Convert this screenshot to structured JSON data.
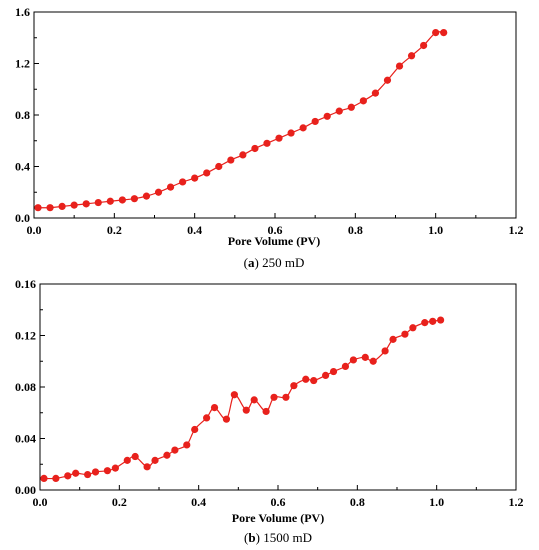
{
  "chart_data": [
    {
      "type": "line",
      "caption_letter": "a",
      "caption_text": "250 mD",
      "xlabel": "Pore Volume (PV)",
      "ylabel": "",
      "xlim": [
        0,
        1.2
      ],
      "ylim": [
        0,
        1.6
      ],
      "xticks": [
        "0.0",
        "0.2",
        "0.4",
        "0.6",
        "0.8",
        "1.0",
        "1.2"
      ],
      "yticks": [
        "0.0",
        "0.4",
        "0.8",
        "1.2",
        "1.6"
      ],
      "ytick_values": [
        0,
        0.4,
        0.8,
        1.2,
        1.6
      ],
      "grid": false,
      "line_color": "#e8211c",
      "series": [
        {
          "x": [
            0.01,
            0.04,
            0.07,
            0.1,
            0.13,
            0.16,
            0.19,
            0.22,
            0.25,
            0.28,
            0.31,
            0.34,
            0.37,
            0.4,
            0.43,
            0.46,
            0.49,
            0.52,
            0.55,
            0.58,
            0.61,
            0.64,
            0.67,
            0.7,
            0.73,
            0.76,
            0.79,
            0.82,
            0.85,
            0.88,
            0.91,
            0.94,
            0.97,
            1.0,
            1.02
          ],
          "values": [
            0.08,
            0.08,
            0.09,
            0.1,
            0.11,
            0.12,
            0.13,
            0.14,
            0.15,
            0.17,
            0.2,
            0.24,
            0.28,
            0.31,
            0.35,
            0.4,
            0.45,
            0.49,
            0.54,
            0.58,
            0.62,
            0.66,
            0.7,
            0.75,
            0.79,
            0.83,
            0.86,
            0.91,
            0.97,
            1.07,
            1.18,
            1.26,
            1.34,
            1.44,
            1.44
          ]
        }
      ]
    },
    {
      "type": "line",
      "caption_letter": "b",
      "caption_text": "1500 mD",
      "xlabel": "Pore Volume (PV)",
      "ylabel": "",
      "xlim": [
        0,
        1.2
      ],
      "ylim": [
        0,
        0.16
      ],
      "xticks": [
        "0.0",
        "0.2",
        "0.4",
        "0.6",
        "0.8",
        "1.0",
        "1.2"
      ],
      "yticks": [
        "0.00",
        "0.04",
        "0.08",
        "0.12",
        "0.16"
      ],
      "ytick_values": [
        0,
        0.04,
        0.08,
        0.12,
        0.16
      ],
      "grid": false,
      "line_color": "#e8211c",
      "series": [
        {
          "x": [
            0.01,
            0.04,
            0.07,
            0.09,
            0.12,
            0.14,
            0.17,
            0.19,
            0.22,
            0.24,
            0.27,
            0.29,
            0.32,
            0.34,
            0.37,
            0.39,
            0.42,
            0.44,
            0.47,
            0.49,
            0.52,
            0.54,
            0.57,
            0.59,
            0.62,
            0.64,
            0.67,
            0.69,
            0.72,
            0.74,
            0.77,
            0.79,
            0.82,
            0.84,
            0.87,
            0.89,
            0.92,
            0.94,
            0.97,
            0.99,
            1.01
          ],
          "values": [
            0.009,
            0.009,
            0.011,
            0.013,
            0.012,
            0.014,
            0.015,
            0.017,
            0.023,
            0.026,
            0.018,
            0.023,
            0.027,
            0.031,
            0.035,
            0.047,
            0.056,
            0.064,
            0.055,
            0.074,
            0.062,
            0.07,
            0.061,
            0.072,
            0.072,
            0.081,
            0.086,
            0.085,
            0.089,
            0.092,
            0.096,
            0.101,
            0.103,
            0.1,
            0.108,
            0.117,
            0.121,
            0.126,
            0.13,
            0.131,
            0.132
          ]
        }
      ]
    }
  ]
}
